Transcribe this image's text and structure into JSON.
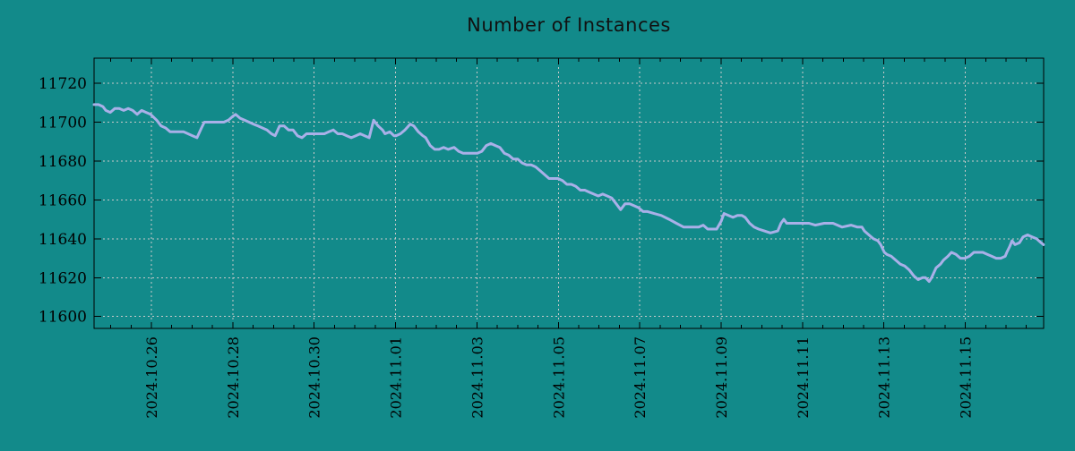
{
  "title": "Number of Instances",
  "colors": {
    "background": "#128a8a",
    "line": "#a9b0e8",
    "grid": "#c9c9c9",
    "axis": "#000000",
    "text": "#111111"
  },
  "chart_data": {
    "type": "line",
    "title": "Number of Instances",
    "legend": "none",
    "grid": "dotted",
    "x_axis": {
      "label": "",
      "epoch": "2024-10-26 00:00",
      "range_days": [
        -1.409,
        21.924
      ],
      "tick_days": [
        0,
        2,
        4,
        6,
        8,
        10,
        12,
        14,
        16,
        18,
        20
      ],
      "tick_labels": [
        "2024.10.26",
        "2024.10.28",
        "2024.10.30",
        "2024.11.01",
        "2024.11.03",
        "2024.11.05",
        "2024.11.07",
        "2024.11.09",
        "2024.11.11",
        "2024.11.13",
        "2024.11.15"
      ],
      "minor_tick_interval_days": 0.5
    },
    "y_axis": {
      "label": "",
      "range": [
        11593.9,
        11732.9
      ],
      "ticks": [
        11600,
        11620,
        11640,
        11660,
        11680,
        11700,
        11720
      ]
    },
    "series_name": "Number of Instances",
    "points": [
      [
        -1.41,
        11709
      ],
      [
        -1.3,
        11709
      ],
      [
        -1.19,
        11708
      ],
      [
        -1.12,
        11706
      ],
      [
        -1.01,
        11705
      ],
      [
        -0.9,
        11707
      ],
      [
        -0.79,
        11707
      ],
      [
        -0.68,
        11706
      ],
      [
        -0.57,
        11707
      ],
      [
        -0.46,
        11706
      ],
      [
        -0.35,
        11704
      ],
      [
        -0.24,
        11706
      ],
      [
        -0.13,
        11705
      ],
      [
        -0.02,
        11704
      ],
      [
        0.13,
        11701
      ],
      [
        0.24,
        11698
      ],
      [
        0.35,
        11697
      ],
      [
        0.46,
        11695
      ],
      [
        0.57,
        11695
      ],
      [
        0.68,
        11695
      ],
      [
        0.79,
        11695
      ],
      [
        0.9,
        11694
      ],
      [
        1.01,
        11693
      ],
      [
        1.12,
        11692
      ],
      [
        1.23,
        11697
      ],
      [
        1.3,
        11700
      ],
      [
        1.45,
        11700
      ],
      [
        1.56,
        11700
      ],
      [
        1.67,
        11700
      ],
      [
        1.78,
        11700
      ],
      [
        1.89,
        11701
      ],
      [
        2.0,
        11703
      ],
      [
        2.07,
        11704
      ],
      [
        2.18,
        11702
      ],
      [
        2.29,
        11701
      ],
      [
        2.4,
        11700
      ],
      [
        2.51,
        11699
      ],
      [
        2.62,
        11698
      ],
      [
        2.73,
        11697
      ],
      [
        2.84,
        11696
      ],
      [
        2.95,
        11694
      ],
      [
        3.04,
        11693
      ],
      [
        3.15,
        11698
      ],
      [
        3.26,
        11698
      ],
      [
        3.37,
        11696
      ],
      [
        3.48,
        11696
      ],
      [
        3.59,
        11693
      ],
      [
        3.7,
        11692
      ],
      [
        3.81,
        11694
      ],
      [
        3.92,
        11694
      ],
      [
        4.01,
        11694
      ],
      [
        4.14,
        11694
      ],
      [
        4.25,
        11694
      ],
      [
        4.36,
        11695
      ],
      [
        4.47,
        11696
      ],
      [
        4.58,
        11694
      ],
      [
        4.69,
        11694
      ],
      [
        4.8,
        11693
      ],
      [
        4.91,
        11692
      ],
      [
        5.02,
        11693
      ],
      [
        5.13,
        11694
      ],
      [
        5.24,
        11693
      ],
      [
        5.35,
        11692
      ],
      [
        5.46,
        11701
      ],
      [
        5.57,
        11698
      ],
      [
        5.68,
        11696
      ],
      [
        5.74,
        11694
      ],
      [
        5.86,
        11695
      ],
      [
        5.96,
        11693
      ],
      [
        6.01,
        11693
      ],
      [
        6.12,
        11694
      ],
      [
        6.23,
        11696
      ],
      [
        6.36,
        11699
      ],
      [
        6.45,
        11698
      ],
      [
        6.56,
        11695
      ],
      [
        6.67,
        11693
      ],
      [
        6.74,
        11692
      ],
      [
        6.85,
        11688
      ],
      [
        6.96,
        11686
      ],
      [
        7.07,
        11686
      ],
      [
        7.18,
        11687
      ],
      [
        7.29,
        11686
      ],
      [
        7.44,
        11687
      ],
      [
        7.55,
        11685
      ],
      [
        7.66,
        11684
      ],
      [
        7.77,
        11684
      ],
      [
        7.88,
        11684
      ],
      [
        8.01,
        11684
      ],
      [
        8.12,
        11685
      ],
      [
        8.23,
        11688
      ],
      [
        8.34,
        11689
      ],
      [
        8.45,
        11688
      ],
      [
        8.56,
        11687
      ],
      [
        8.67,
        11684
      ],
      [
        8.78,
        11683
      ],
      [
        8.89,
        11681
      ],
      [
        9.0,
        11681
      ],
      [
        9.11,
        11679
      ],
      [
        9.22,
        11678
      ],
      [
        9.33,
        11678
      ],
      [
        9.44,
        11677
      ],
      [
        9.55,
        11675
      ],
      [
        9.66,
        11673
      ],
      [
        9.77,
        11671
      ],
      [
        9.88,
        11671
      ],
      [
        9.99,
        11671
      ],
      [
        10.1,
        11670
      ],
      [
        10.21,
        11668
      ],
      [
        10.32,
        11668
      ],
      [
        10.43,
        11667
      ],
      [
        10.54,
        11665
      ],
      [
        10.65,
        11665
      ],
      [
        10.76,
        11664
      ],
      [
        10.87,
        11663
      ],
      [
        10.98,
        11662
      ],
      [
        11.09,
        11663
      ],
      [
        11.2,
        11662
      ],
      [
        11.31,
        11661
      ],
      [
        11.42,
        11658
      ],
      [
        11.53,
        11655
      ],
      [
        11.64,
        11658
      ],
      [
        11.75,
        11658
      ],
      [
        11.86,
        11657
      ],
      [
        11.97,
        11656
      ],
      [
        12.08,
        11654
      ],
      [
        12.19,
        11654
      ],
      [
        12.35,
        11653
      ],
      [
        12.53,
        11652
      ],
      [
        12.72,
        11650
      ],
      [
        12.9,
        11648
      ],
      [
        13.08,
        11646
      ],
      [
        13.27,
        11646
      ],
      [
        13.45,
        11646
      ],
      [
        13.56,
        11647
      ],
      [
        13.67,
        11645
      ],
      [
        13.78,
        11645
      ],
      [
        13.89,
        11645
      ],
      [
        14.0,
        11649
      ],
      [
        14.07,
        11653
      ],
      [
        14.18,
        11652
      ],
      [
        14.29,
        11651
      ],
      [
        14.4,
        11652
      ],
      [
        14.51,
        11652
      ],
      [
        14.59,
        11651
      ],
      [
        14.7,
        11648
      ],
      [
        14.81,
        11646
      ],
      [
        14.92,
        11645
      ],
      [
        15.06,
        11644
      ],
      [
        15.21,
        11643
      ],
      [
        15.39,
        11644
      ],
      [
        15.47,
        11648
      ],
      [
        15.54,
        11650
      ],
      [
        15.61,
        11648
      ],
      [
        15.8,
        11648
      ],
      [
        15.94,
        11648
      ],
      [
        16.16,
        11648
      ],
      [
        16.31,
        11647
      ],
      [
        16.53,
        11648
      ],
      [
        16.75,
        11648
      ],
      [
        16.97,
        11646
      ],
      [
        17.19,
        11647
      ],
      [
        17.35,
        11646
      ],
      [
        17.46,
        11646
      ],
      [
        17.52,
        11644
      ],
      [
        17.63,
        11642
      ],
      [
        17.74,
        11640
      ],
      [
        17.85,
        11639
      ],
      [
        17.92,
        11637
      ],
      [
        18.01,
        11633
      ],
      [
        18.07,
        11632
      ],
      [
        18.18,
        11631
      ],
      [
        18.29,
        11629
      ],
      [
        18.4,
        11627
      ],
      [
        18.51,
        11626
      ],
      [
        18.62,
        11624
      ],
      [
        18.73,
        11621
      ],
      [
        18.84,
        11619
      ],
      [
        18.95,
        11620
      ],
      [
        19.02,
        11620
      ],
      [
        19.11,
        11618
      ],
      [
        19.17,
        11620
      ],
      [
        19.28,
        11625
      ],
      [
        19.39,
        11627
      ],
      [
        19.46,
        11629
      ],
      [
        19.57,
        11631
      ],
      [
        19.66,
        11633
      ],
      [
        19.77,
        11632
      ],
      [
        19.88,
        11630
      ],
      [
        19.99,
        11630
      ],
      [
        20.1,
        11631
      ],
      [
        20.21,
        11633
      ],
      [
        20.32,
        11633
      ],
      [
        20.43,
        11633
      ],
      [
        20.54,
        11632
      ],
      [
        20.65,
        11631
      ],
      [
        20.76,
        11630
      ],
      [
        20.87,
        11630
      ],
      [
        20.98,
        11631
      ],
      [
        21.02,
        11633
      ],
      [
        21.09,
        11636
      ],
      [
        21.15,
        11639
      ],
      [
        21.22,
        11637
      ],
      [
        21.33,
        11638
      ],
      [
        21.42,
        11641
      ],
      [
        21.53,
        11642
      ],
      [
        21.64,
        11641
      ],
      [
        21.75,
        11640
      ],
      [
        21.86,
        11638
      ],
      [
        21.92,
        11637
      ]
    ]
  }
}
